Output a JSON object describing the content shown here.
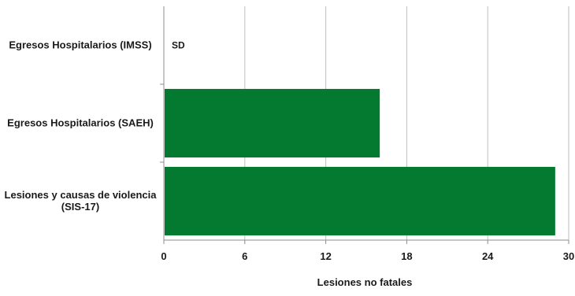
{
  "chart_data": {
    "type": "bar",
    "orientation": "horizontal",
    "categories": [
      "Egresos Hospitalarios (IMSS)",
      "Egresos Hospitalarios (SAEH)",
      "Lesiones y causas de violencia (SIS-17)"
    ],
    "values": [
      null,
      16,
      29
    ],
    "data_labels": [
      "SD",
      "",
      ""
    ],
    "xlabel": "Lesiones no fatales",
    "ylabel": "",
    "xlim": [
      0,
      30
    ],
    "xticks": [
      "0",
      "6",
      "12",
      "18",
      "24",
      "30"
    ],
    "grid": true,
    "legend": "none",
    "colors": {
      "bar": "#047a30",
      "grid": "#bfbfbf",
      "axis": "#8c8c8c"
    }
  }
}
